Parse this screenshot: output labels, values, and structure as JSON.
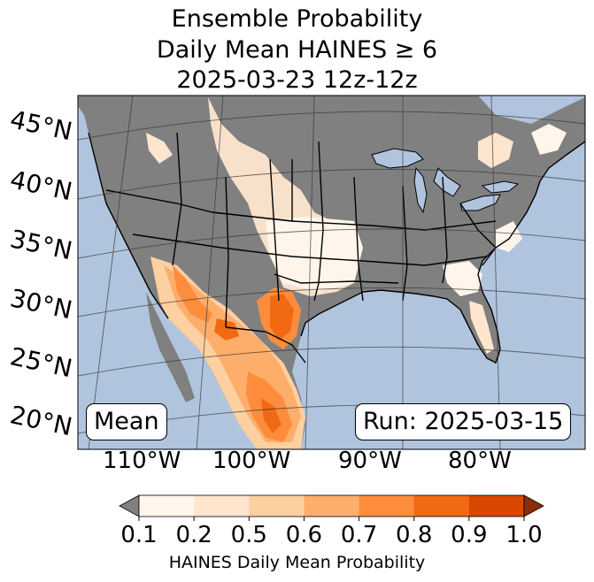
{
  "title": {
    "line1": "Ensemble Probability",
    "line2": "Daily Mean HAINES ≥ 6",
    "line3": "2025-03-23 12z-12z"
  },
  "map": {
    "ocean_color": "#b0c4de",
    "land_color": "#808080",
    "lat_labels": [
      "45°N",
      "40°N",
      "35°N",
      "30°N",
      "25°N",
      "20°N"
    ],
    "lon_labels": [
      "110°W",
      "100°W",
      "90°W",
      "80°W"
    ],
    "mean_label": "Mean",
    "run_label": "Run: 2025-03-15"
  },
  "colorbar": {
    "label": "HAINES Daily Mean Probability",
    "ticks": [
      "0.1",
      "0.2",
      "0.5",
      "0.6",
      "0.7",
      "0.8",
      "0.9",
      "1.0"
    ],
    "under_color": "#808080",
    "colors": [
      "#fff5eb",
      "#fee6ce",
      "#fdd0a2",
      "#fdae6b",
      "#fd8d3c",
      "#f16913",
      "#d94801",
      "#8c2d04"
    ]
  }
}
